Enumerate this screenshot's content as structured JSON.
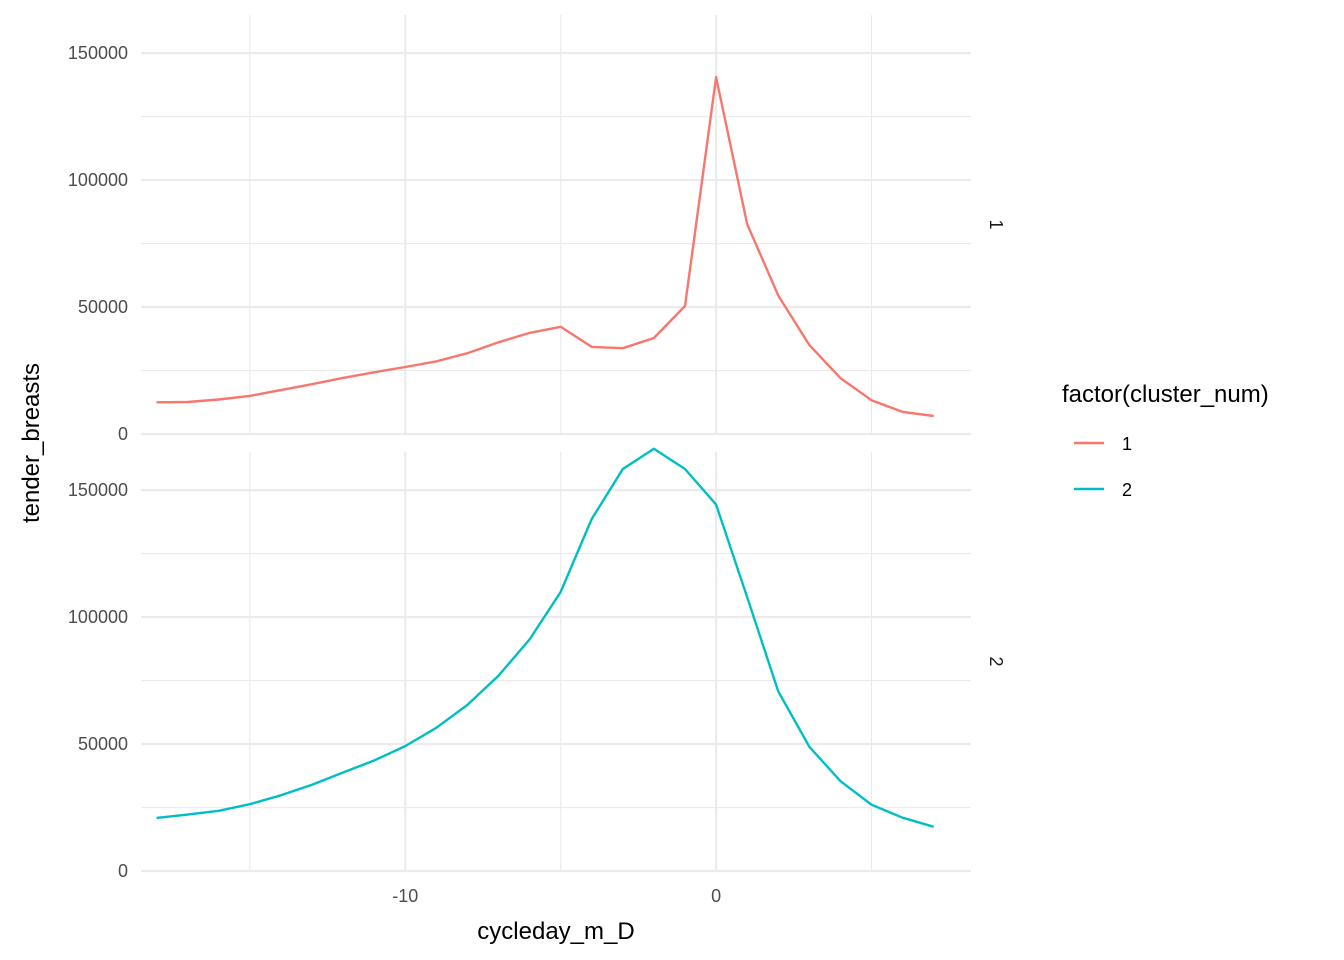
{
  "chart_data": {
    "type": "line",
    "xlabel": "cycleday_m_D",
    "ylabel": "tender_breasts",
    "xlim": [
      -18.5,
      8.2
    ],
    "x_ticks": [
      -10,
      0
    ],
    "x_tick_labels": [
      "-10",
      "0"
    ],
    "x_minor_ticks": [
      -15,
      -5,
      5
    ],
    "facets": [
      {
        "label": "1",
        "ylim": [
          0,
          165000
        ],
        "y_ticks": [
          0,
          50000,
          100000,
          150000
        ],
        "y_tick_labels": [
          "0",
          "50000",
          "100000",
          "150000"
        ],
        "y_minor_ticks": [
          25000,
          75000,
          125000
        ],
        "series": [
          {
            "name": "1",
            "color": "#F8766D",
            "x": [
              -18,
              -17,
              -16,
              -15,
              -14,
              -13,
              -12,
              -11,
              -10,
              -9,
              -8,
              -7,
              -6,
              -5,
              -4,
              -3,
              -2,
              -1,
              0,
              1,
              2,
              3,
              4,
              5,
              6,
              7
            ],
            "values": [
              12500,
              12600,
              13600,
              15000,
              17300,
              19600,
              22100,
              24300,
              26400,
              28600,
              31800,
              36100,
              39800,
              42200,
              34300,
              33800,
              37800,
              50400,
              140500,
              82600,
              54500,
              35000,
              22000,
              13300,
              8700,
              7100
            ]
          }
        ]
      },
      {
        "label": "2",
        "ylim": [
          0,
          165000
        ],
        "y_ticks": [
          0,
          50000,
          100000,
          150000
        ],
        "y_tick_labels": [
          "0",
          "50000",
          "100000",
          "150000"
        ],
        "y_minor_ticks": [
          25000,
          75000,
          125000
        ],
        "series": [
          {
            "name": "2",
            "color": "#00BFC4",
            "x": [
              -18,
              -17,
              -16,
              -15,
              -14,
              -13,
              -12,
              -11,
              -10,
              -9,
              -8,
              -7,
              -6,
              -5,
              -4,
              -3,
              -2,
              -1,
              0,
              1,
              2,
              3,
              4,
              5,
              6,
              7
            ],
            "values": [
              20900,
              22200,
              23700,
              26300,
              29800,
              34000,
              38800,
              43500,
              49200,
              56400,
              65400,
              76900,
              91200,
              109900,
              138600,
              158300,
              166300,
              158300,
              144300,
              107800,
              70700,
              48900,
              35400,
              26100,
              21000,
              17400
            ]
          }
        ]
      }
    ],
    "legend": {
      "title": "factor(cluster_num)",
      "placement": "right",
      "items": [
        {
          "label": "1",
          "color": "#F8766D"
        },
        {
          "label": "2",
          "color": "#00BFC4"
        }
      ]
    },
    "grid": true
  }
}
